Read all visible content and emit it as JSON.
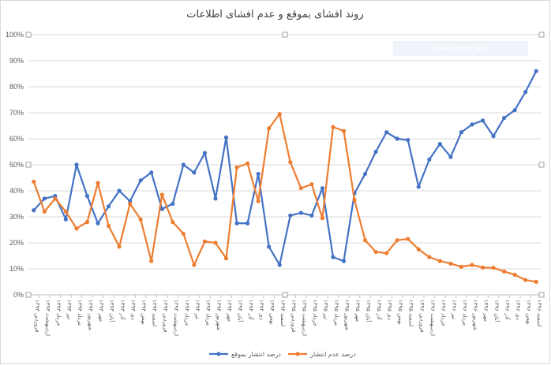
{
  "chart_data": {
    "type": "line",
    "title": "روند افشای بموقع و عدم افشای اطلاعات",
    "xlabel": "",
    "ylabel": "",
    "ylim": [
      0,
      1
    ],
    "yticks": [
      "0%",
      "10%",
      "20%",
      "30%",
      "40%",
      "50%",
      "60%",
      "70%",
      "80%",
      "90%",
      "100%"
    ],
    "grid": true,
    "legend_position": "bottom",
    "categories": [
      "فروردین ۱۳۹۳",
      "اردیبهشت ۱۳۹۳",
      "خرداد ۱۳۹۳",
      "تیر ۱۳۹۳",
      "مرداد ۱۳۹۳",
      "شهریور ۱۳۹۳",
      "مهر ۱۳۹۳",
      "آبان ۱۳۹۳",
      "آذر ۱۳۹۳",
      "دی ۱۳۹۳",
      "بهمن ۱۳۹۳",
      "اسفند ۱۳۹۳",
      "فروردین ۱۳۹۴",
      "اردیبهشت ۱۳۹۴",
      "خرداد ۱۳۹۴",
      "تیر ۱۳۹۴",
      "مرداد ۱۳۹۴",
      "شهریور ۱۳۹۴",
      "مهر ۱۳۹۴",
      "آبان ۱۳۹۴",
      "آذر ۱۳۹۴",
      "دی ۱۳۹۴",
      "بهمن ۱۳۹۴",
      "اسفند ۱۳۹۴",
      "فروردین ۱۳۹۵",
      "اردیبهشت ۱۳۹۵",
      "خرداد ۱۳۹۵",
      "تیر ۱۳۹۵",
      "مرداد ۱۳۹۵",
      "شهریور ۱۳۹۵",
      "مهر ۱۳۹۵",
      "آبان ۱۳۹۵",
      "آذر ۱۳۹۵",
      "دی ۱۳۹۵",
      "بهمن ۱۳۹۵",
      "اسفند ۱۳۹۵",
      "فروردین ۱۳۹۶",
      "اردیبهشت ۱۳۹۶",
      "خرداد ۱۳۹۶",
      "تیر ۱۳۹۶",
      "مرداد ۱۳۹۶",
      "شهریور ۱۳۹۶",
      "مهر ۱۳۹۶",
      "آبان ۱۳۹۶",
      "آذر ۱۳۹۶",
      "دی ۱۳۹۶",
      "بهمن ۱۳۹۶",
      "اسفند ۱۳۹۶"
    ],
    "series": [
      {
        "name": "درصد انتشار بموقع",
        "color": "#4472c4",
        "values": [
          0.325,
          0.37,
          0.38,
          0.29,
          0.5,
          0.38,
          0.275,
          0.34,
          0.4,
          0.36,
          0.44,
          0.47,
          0.33,
          0.35,
          0.5,
          0.47,
          0.545,
          0.37,
          0.605,
          0.275,
          0.275,
          0.465,
          0.185,
          0.115,
          0.305,
          0.315,
          0.305,
          0.41,
          0.145,
          0.13,
          0.39,
          0.465,
          0.55,
          0.625,
          0.6,
          0.595,
          0.415,
          0.52,
          0.58,
          0.53,
          0.625,
          0.655,
          0.67,
          0.61,
          0.68,
          0.71,
          0.78,
          0.86
        ]
      },
      {
        "name": "درصد عدم انتشار",
        "color": "#ed7d31",
        "values": [
          0.435,
          0.32,
          0.37,
          0.32,
          0.255,
          0.28,
          0.43,
          0.265,
          0.185,
          0.35,
          0.29,
          0.13,
          0.385,
          0.28,
          0.235,
          0.115,
          0.205,
          0.2,
          0.14,
          0.49,
          0.505,
          0.36,
          0.64,
          0.695,
          0.51,
          0.41,
          0.425,
          0.295,
          0.645,
          0.63,
          0.365,
          0.21,
          0.165,
          0.16,
          0.21,
          0.215,
          0.175,
          0.145,
          0.13,
          0.12,
          0.108,
          0.115,
          0.105,
          0.104,
          0.09,
          0.077,
          0.057,
          0.05
        ]
      }
    ]
  },
  "overlay": {
    "label": "Full-screen Snip"
  }
}
